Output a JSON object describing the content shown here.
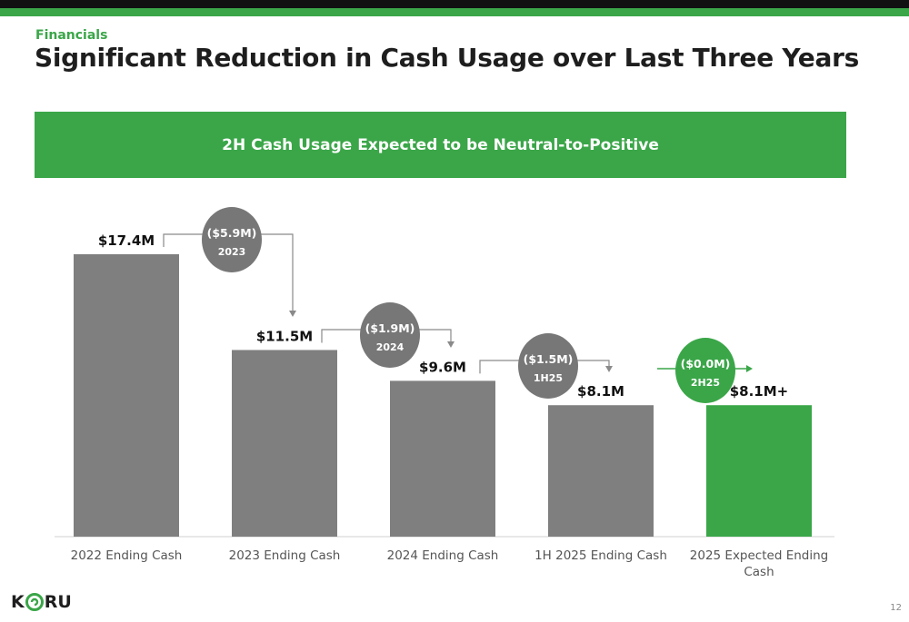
{
  "header": {
    "section": "Financials",
    "title": "Significant Reduction in Cash Usage over Last Three Years"
  },
  "banner": {
    "text": "2H Cash Usage Expected to be Neutral-to-Positive"
  },
  "colors": {
    "accent": "#3aa648",
    "bar": "#7f7f7f",
    "bubble": "#777777",
    "text": "#111111"
  },
  "chart_data": {
    "type": "bar",
    "title": "",
    "xlabel": "",
    "ylabel": "",
    "categories": [
      "2022 Ending Cash",
      "2023 Ending Cash",
      "2024 Ending Cash",
      "1H 2025 Ending Cash",
      "2025 Expected Ending Cash"
    ],
    "values": [
      17.4,
      11.5,
      9.6,
      8.1,
      8.1
    ],
    "unit": "$M",
    "data_labels": [
      "$17.4M",
      "$11.5M",
      "$9.6M",
      "$8.1M",
      "$8.1M+"
    ],
    "bar_colors": [
      "#7f7f7f",
      "#7f7f7f",
      "#7f7f7f",
      "#7f7f7f",
      "#3aa648"
    ],
    "ylim": [
      0,
      18
    ],
    "grid": false,
    "changes": [
      {
        "amount": "($5.9M)",
        "period": "2023",
        "value": -5.9,
        "color": "#777777"
      },
      {
        "amount": "($1.9M)",
        "period": "2024",
        "value": -1.9,
        "color": "#777777"
      },
      {
        "amount": "($1.5M)",
        "period": "1H25",
        "value": -1.5,
        "color": "#777777"
      },
      {
        "amount": "($0.0M)",
        "period": "2H25",
        "value": 0.0,
        "color": "#3aa648"
      }
    ]
  },
  "footer": {
    "logo_text": "KORU",
    "logo_icon": "koru-spiral-icon",
    "page_number": "12"
  }
}
